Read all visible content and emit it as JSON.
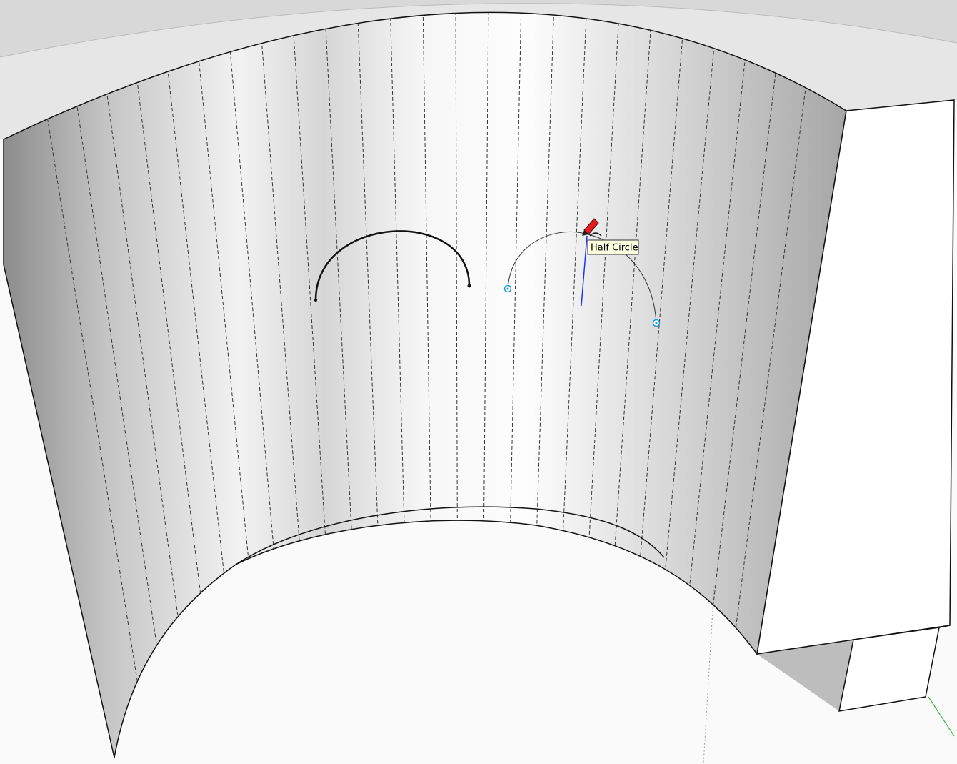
{
  "tooltip": {
    "label": "Half Circle"
  }
}
